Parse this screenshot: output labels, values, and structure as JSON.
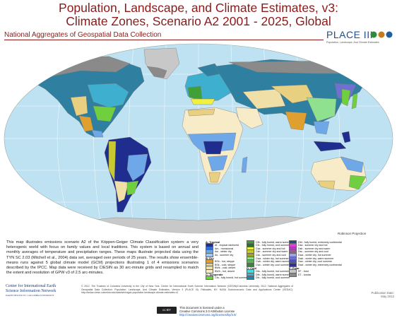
{
  "title_line1": "Population, Landscape, and Climate Estimates, v3:",
  "title_line2": "Climate Zones, Scenario A2 2001 - 2025, Global",
  "subtitle": "National Aggregates of Geospatial Data Collection",
  "logo": {
    "word": "PLACE III",
    "tagline": "Population, Landscape, And Climate Estimates"
  },
  "projection": "Robinson Projection",
  "description": "This map illustrates emissions scenario A2 of the Köppen-Geiger Climate Classification system: a very heterogenic world with focus on family values and local traditions. This system is based on annual and monthly averages of temperature and precipitation ranges. These maps illustrate projected data using the TYN SC 2.03 (Mitchell et al., 2004) data set, averaged over periods of 25 years. The results show ensemble-means runs against 5 global climate model (GCM) projections illustrating 1 of 4 emissions scenarios described by the IPCC. Map data were received by CIESIN as 30 arc-minute grids and resampled to match the extent and resolution of GPW v3 of 2.5 arc-minutes.",
  "credits": "© 2012. The Trustees of Columbia University in the City of New York. Center for International Earth Science Information Network (CIESIN)/Columbia University. 2012. National Aggregates of Geospatial Data Collection: Population, Landscape, And Climate Estimates, Version 3 (PLACE III). Palisades, NY: NASA Socioeconomic Data and Applications Center (SEDAC). http://sedac.ciesin.columbia.edu/data/set/nagdc-population-landscape-climate-estimates-v3",
  "ciesin": {
    "line1": "Center for International Earth",
    "line2": "Science Information Network",
    "line3": "EARTH INSTITUTE | COLUMBIA UNIVERSITY"
  },
  "publication": {
    "label": "Publication Date:",
    "date": "May 2012"
  },
  "license": {
    "line1": "This document is licensed under a",
    "line2": "Creative Commons 3.0 Attribution License",
    "link": "http://creativecommons.org/licenses/by/3.0/",
    "badge": "cc BY"
  },
  "legend": {
    "groups": [
      {
        "head": "A: Tropical",
        "items": [
          {
            "code": "Af",
            "label": "Af - tropical rainforest",
            "color": "#1f2d8f"
          },
          {
            "code": "Am",
            "label": "Am - monsoonal",
            "color": "#2f6fd0"
          },
          {
            "code": "Aw",
            "label": "Aw - winter dry",
            "color": "#6fa8e8"
          },
          {
            "code": "As",
            "label": "As - summer dry",
            "color": "#9ec8f0"
          }
        ]
      },
      {
        "head": "B: Dry",
        "items": [
          {
            "code": "BSh",
            "label": "BSh - hot, steppe",
            "color": "#e0a030"
          },
          {
            "code": "BSk",
            "label": "BSk - cold, steppe",
            "color": "#e8d080"
          },
          {
            "code": "BWk",
            "label": "BWk - cold, desert",
            "color": "#f0e0a8"
          },
          {
            "code": "BWh",
            "label": "BWh - hot, desert",
            "color": "#f8ecc8"
          }
        ]
      },
      {
        "head": "C: Temperate",
        "items": [
          {
            "code": "Cfa",
            "label": "Cfa - fully humid, hot summer",
            "color": "#6fcf3f"
          },
          {
            "code": "Cfb",
            "label": "Cfb - fully humid, warm summer",
            "color": "#3fa03a"
          },
          {
            "code": "Cfc",
            "label": "Cfc - fully humid, cool summer",
            "color": "#2a7030"
          },
          {
            "code": "Csa",
            "label": "Csa - summer dry and hot",
            "color": "#f0f040"
          },
          {
            "code": "Csb",
            "label": "Csb - summer dry and warm",
            "color": "#c8c830"
          },
          {
            "code": "Csc",
            "label": "Csc - summer dry and cool",
            "color": "#a0a028"
          },
          {
            "code": "Cwa",
            "label": "Cwa - winter dry, hot summer",
            "color": "#8fe08f"
          },
          {
            "code": "Cwb",
            "label": "Cwb - winter dry, warm summer",
            "color": "#5fb05f"
          },
          {
            "code": "Cwc",
            "label": "Cwc - winter dry, cool summer",
            "color": "#3f803f"
          }
        ]
      },
      {
        "head": "D: Cold",
        "items": [
          {
            "code": "Dfa",
            "label": "Dfa - fully humid, hot summer",
            "color": "#3fdfdf"
          },
          {
            "code": "Dfb",
            "label": "Dfb - fully humid, warm summer",
            "color": "#3fafcf"
          },
          {
            "code": "Dfc",
            "label": "Dfc - fully humid, cool summer",
            "color": "#2f7fa0"
          },
          {
            "code": "Dfd",
            "label": "Dfd - fully humid, extremely continental",
            "color": "#1f4f70"
          },
          {
            "code": "Dsa",
            "label": "Dsa - summer dry and hot",
            "color": "#df3fdf"
          },
          {
            "code": "Dsb",
            "label": "Dsb - summer dry and warm",
            "color": "#b03fb0"
          },
          {
            "code": "Dsc",
            "label": "Dsc - summer dry and cool",
            "color": "#8f5f8f"
          },
          {
            "code": "Dwa",
            "label": "Dwa - winter dry, hot summer",
            "color": "#a0a0e8"
          },
          {
            "code": "Dwb",
            "label": "Dwb - winter dry, warm summer",
            "color": "#7070d0"
          },
          {
            "code": "Dwc",
            "label": "Dwc - winter dry, cool summer",
            "color": "#5050b0"
          },
          {
            "code": "Dwd",
            "label": "Dwd - winter dry, extremely continental",
            "color": "#30308f"
          }
        ]
      },
      {
        "head": "E: Polar",
        "items": [
          {
            "code": "EF",
            "label": "EF - frost",
            "color": "#c8c8c8"
          },
          {
            "code": "ET",
            "label": "ET - tundra",
            "color": "#8a8a8a"
          }
        ]
      }
    ]
  },
  "map_colors": {
    "ocean": "#bfe2f2",
    "graticule": "#ffffff",
    "border": "#7a7a7a"
  }
}
